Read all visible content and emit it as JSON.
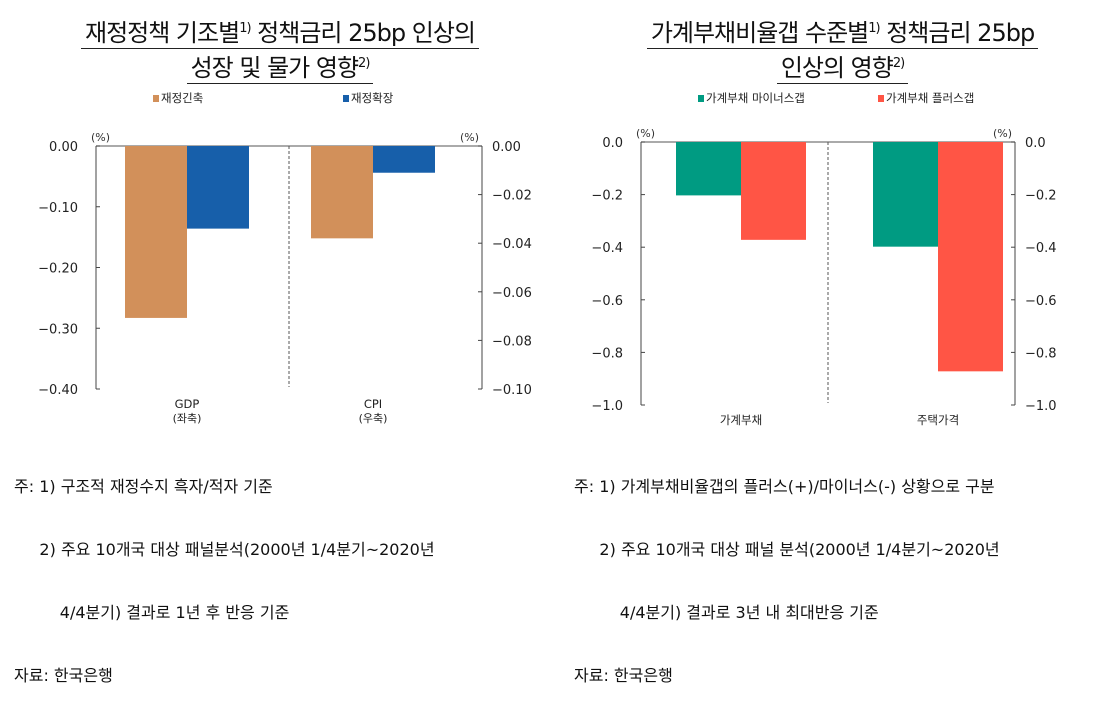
{
  "chart_data": [
    {
      "type": "bar",
      "title_line1": "재정정책 기조별",
      "title_sup1": "1)",
      "title_line1b": " 정책금리 25bp 인상의",
      "title_line2": "성장 및 물가 영향",
      "title_sup2": "2)",
      "categories": [
        "GDP",
        "CPI"
      ],
      "category_sublabels": [
        "(좌축)",
        "(우축)"
      ],
      "series": [
        {
          "name": "재정긴축",
          "color": "#D2905A",
          "values": [
            -0.283,
            -0.038
          ]
        },
        {
          "name": "재정확장",
          "color": "#175FAA",
          "values": [
            -0.136,
            -0.011
          ]
        }
      ],
      "left_axis": {
        "unit": "(%)",
        "ylim": [
          -0.4,
          0
        ],
        "ticks": [
          "0.00",
          "−0.10",
          "−0.20",
          "−0.30",
          "−0.40"
        ]
      },
      "right_axis": {
        "unit": "(%)",
        "ylim": [
          -0.1,
          0
        ],
        "ticks": [
          "0.00",
          "−0.02",
          "−0.04",
          "−0.06",
          "−0.08",
          "−0.10"
        ]
      },
      "category_axis": [
        "left",
        "right"
      ],
      "legend": "top"
    },
    {
      "type": "bar",
      "title_line1": "가계부채비율갭 수준별",
      "title_sup1": "1)",
      "title_line1b": " 정책금리 25bp",
      "title_line2": "인상의 영향",
      "title_sup2": "2)",
      "categories": [
        "가계부채",
        "주택가격"
      ],
      "category_sublabels": [
        "",
        ""
      ],
      "series": [
        {
          "name": "가계부채 마이너스갭",
          "color": "#009B82",
          "values": [
            -0.203,
            -0.398
          ]
        },
        {
          "name": "가계부채 플러스갭",
          "color": "#FF5545",
          "values": [
            -0.372,
            -0.872
          ]
        }
      ],
      "left_axis": {
        "unit": "(%)",
        "ylim": [
          -1.0,
          0
        ],
        "ticks": [
          "0.0",
          "−0.2",
          "−0.4",
          "−0.6",
          "−0.8",
          "−1.0"
        ]
      },
      "right_axis": {
        "unit": "(%)",
        "ylim": [
          -1.0,
          0
        ],
        "ticks": [
          "0.0",
          "−0.2",
          "−0.4",
          "−0.6",
          "−0.8",
          "−1.0"
        ]
      },
      "category_axis": [
        "left",
        "left"
      ],
      "legend": "top"
    }
  ],
  "notes": [
    [
      "주: 1) 구조적 재정수지 흑자/적자 기준",
      "     2) 주요 10개국 대상 패널분석(2000년 1/4분기~2020년",
      "         4/4분기) 결과로 1년 후 반응 기준",
      "자료: 한국은행"
    ],
    [
      "주: 1) 가계부채비율갭의 플러스(+)/마이너스(-) 상황으로 구분",
      "     2) 주요 10개국 대상 패널 분석(2000년 1/4분기~2020년",
      "         4/4분기) 결과로 3년 내 최대반응 기준",
      "자료: 한국은행"
    ]
  ]
}
